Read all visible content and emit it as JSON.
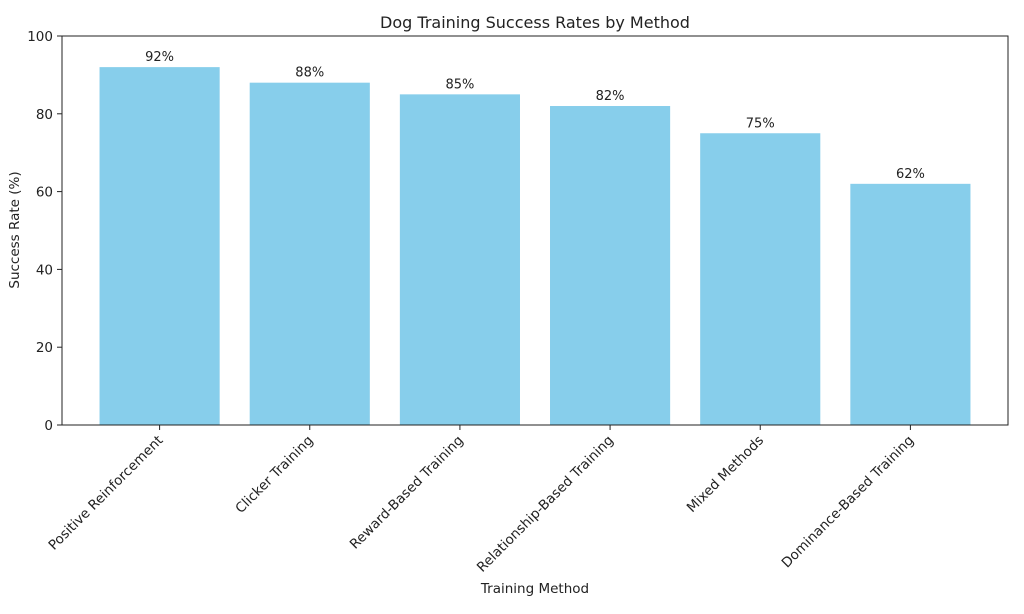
{
  "chart_data": {
    "type": "bar",
    "title": "Dog Training Success Rates by Method",
    "xlabel": "Training Method",
    "ylabel": "Success Rate (%)",
    "categories": [
      "Positive Reinforcement",
      "Clicker Training",
      "Reward-Based Training",
      "Relationship-Based Training",
      "Mixed Methods",
      "Dominance-Based Training"
    ],
    "values": [
      92,
      88,
      85,
      82,
      75,
      62
    ],
    "value_labels": [
      "92%",
      "88%",
      "85%",
      "82%",
      "75%",
      "62%"
    ],
    "ylim": [
      0,
      100
    ],
    "yticks": [
      0,
      20,
      40,
      60,
      80,
      100
    ],
    "grid": false,
    "legend": null,
    "bar_color": "#87CEEB"
  }
}
